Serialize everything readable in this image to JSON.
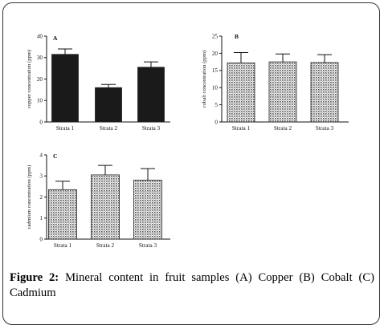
{
  "caption": {
    "label": "Figure 2:",
    "text": "Mineral content in fruit samples (A) Copper (B) Cobalt (C) Cadmium"
  },
  "colors": {
    "bar_dark": "#1a1a1a",
    "bar_pattern": "#555555",
    "axis": "#111111"
  },
  "chart_data": [
    {
      "panel": "A",
      "type": "bar",
      "categories": [
        "Strata 1",
        "Strata 2",
        "Strata 3"
      ],
      "values": [
        31.5,
        16,
        25.5
      ],
      "errors": [
        2.5,
        1.5,
        2.5
      ],
      "ylabel": "copper concentration (ppm)",
      "ylim": [
        0,
        40
      ],
      "yticks": [
        0,
        10,
        20,
        30,
        40
      ],
      "fill": "solid-black"
    },
    {
      "panel": "B",
      "type": "bar",
      "categories": [
        "Strata 1",
        "Strata 2",
        "Strata 3"
      ],
      "values": [
        17.2,
        17.5,
        17.3
      ],
      "errors": [
        3,
        2.3,
        2.3
      ],
      "ylabel": "cobalt concentration (ppm)",
      "ylim": [
        0,
        25
      ],
      "yticks": [
        0,
        5,
        10,
        15,
        20,
        25
      ],
      "fill": "dotted-pattern"
    },
    {
      "panel": "C",
      "type": "bar",
      "categories": [
        "Strata 1",
        "Strata 2",
        "Strata 3"
      ],
      "values": [
        2.35,
        3.05,
        2.8
      ],
      "errors": [
        0.4,
        0.45,
        0.55
      ],
      "ylabel": "cadmium concentration (ppm)",
      "ylim": [
        0,
        4
      ],
      "yticks": [
        0,
        1,
        2,
        3,
        4
      ],
      "fill": "dotted-pattern"
    }
  ]
}
